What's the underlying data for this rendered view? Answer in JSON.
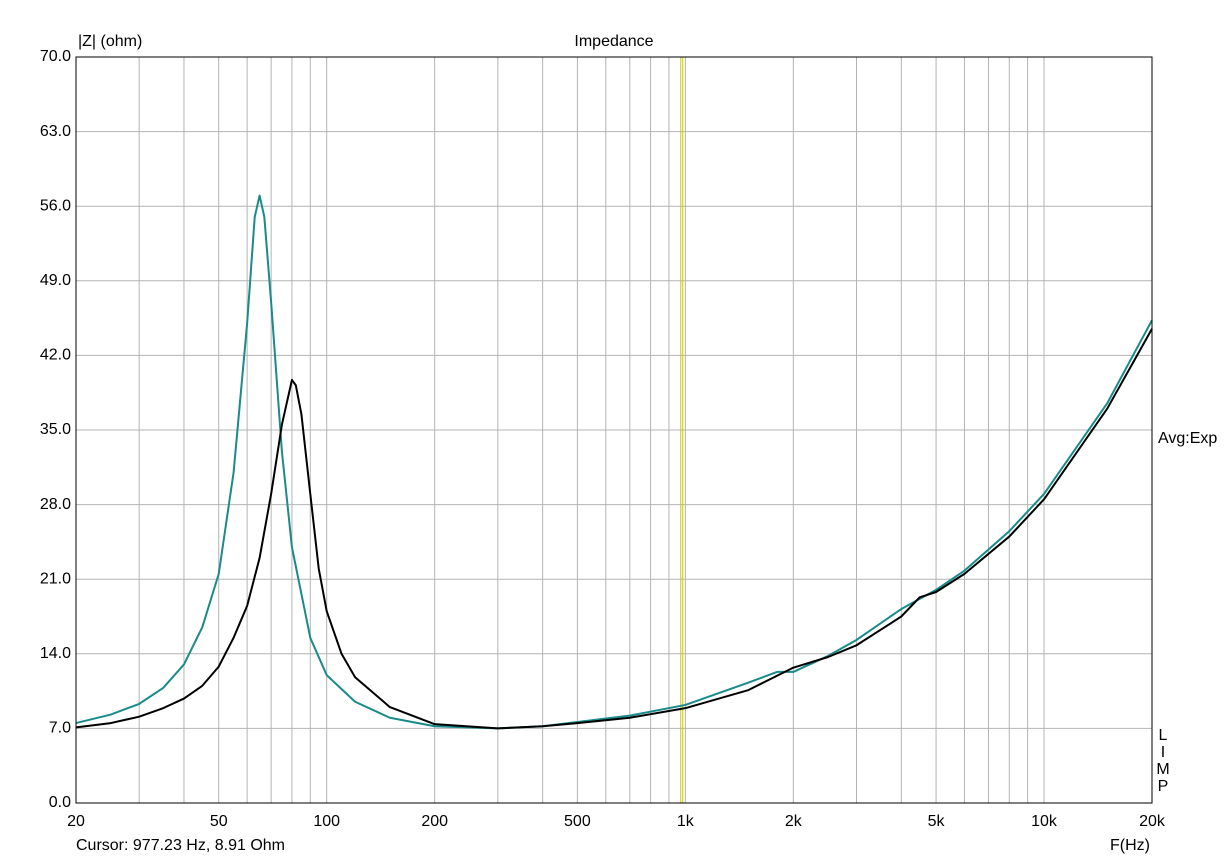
{
  "chart_data": {
    "type": "line",
    "title": "Impedance",
    "y_label": "|Z| (ohm)",
    "x_label": "F(Hz)",
    "side_note": "Avg:Exp",
    "side_letters": [
      "L",
      "I",
      "M",
      "P"
    ],
    "cursor_text": "Cursor: 977.23 Hz, 8.91 Ohm",
    "cursor_x": 977.23,
    "cursor_color": "#c8c800",
    "x_scale": "log",
    "grid": true,
    "xlim": [
      20,
      20000
    ],
    "ylim": [
      0,
      70
    ],
    "xticks": [
      20,
      50,
      100,
      200,
      500,
      {
        "value": 1000,
        "label": "1k"
      },
      {
        "value": 2000,
        "label": "2k"
      },
      {
        "value": 5000,
        "label": "5k"
      },
      {
        "value": 10000,
        "label": "10k"
      },
      {
        "value": 20000,
        "label": "20k"
      }
    ],
    "x_minor_grid": [
      30,
      40,
      60,
      70,
      80,
      90,
      300,
      400,
      600,
      700,
      800,
      900,
      3000,
      4000,
      6000,
      7000,
      8000,
      9000
    ],
    "yticks": [
      {
        "value": 0,
        "label": "0.0"
      },
      {
        "value": 7,
        "label": "7.0"
      },
      {
        "value": 14,
        "label": "14.0"
      },
      {
        "value": 21,
        "label": "21.0"
      },
      {
        "value": 28,
        "label": "28.0"
      },
      {
        "value": 35,
        "label": "35.0"
      },
      {
        "value": 42,
        "label": "42.0"
      },
      {
        "value": 49,
        "label": "49.0"
      },
      {
        "value": 56,
        "label": "56.0"
      },
      {
        "value": 63,
        "label": "63.0"
      },
      {
        "value": 70,
        "label": "70.0"
      }
    ],
    "series": [
      {
        "color": "#1a8a8a",
        "x": [
          20,
          25,
          30,
          35,
          40,
          45,
          50,
          55,
          60,
          63,
          65,
          67,
          70,
          75,
          80,
          90,
          100,
          120,
          150,
          200,
          300,
          400,
          500,
          700,
          1000,
          1500,
          1800,
          2000,
          2500,
          3000,
          4000,
          5000,
          6000,
          8000,
          10000,
          15000,
          20000
        ],
        "values": [
          7.5,
          8.3,
          9.3,
          10.8,
          13,
          16.5,
          21.5,
          31,
          45,
          55,
          57,
          55,
          47,
          33,
          24,
          15.5,
          12,
          9.5,
          8,
          7.2,
          7.0,
          7.2,
          7.6,
          8.2,
          9.2,
          11.3,
          12.3,
          12.3,
          13.8,
          15.3,
          18.2,
          20,
          21.8,
          25.5,
          29,
          37.5,
          45.3
        ]
      },
      {
        "color": "#000000",
        "x": [
          20,
          25,
          30,
          35,
          40,
          45,
          50,
          55,
          60,
          65,
          70,
          75,
          80,
          82,
          85,
          90,
          95,
          100,
          110,
          120,
          150,
          200,
          300,
          400,
          500,
          700,
          1000,
          1500,
          2000,
          2500,
          3000,
          4000,
          4500,
          5000,
          6000,
          8000,
          10000,
          15000,
          20000
        ],
        "values": [
          7.1,
          7.5,
          8.1,
          8.9,
          9.8,
          11,
          12.8,
          15.5,
          18.5,
          23,
          29,
          35.5,
          39.7,
          39.2,
          36.5,
          29,
          22,
          18,
          14,
          11.8,
          9,
          7.4,
          7.0,
          7.2,
          7.5,
          8,
          8.9,
          10.6,
          12.7,
          13.7,
          14.8,
          17.5,
          19.3,
          19.8,
          21.5,
          25,
          28.5,
          37,
          44.5
        ]
      }
    ]
  }
}
